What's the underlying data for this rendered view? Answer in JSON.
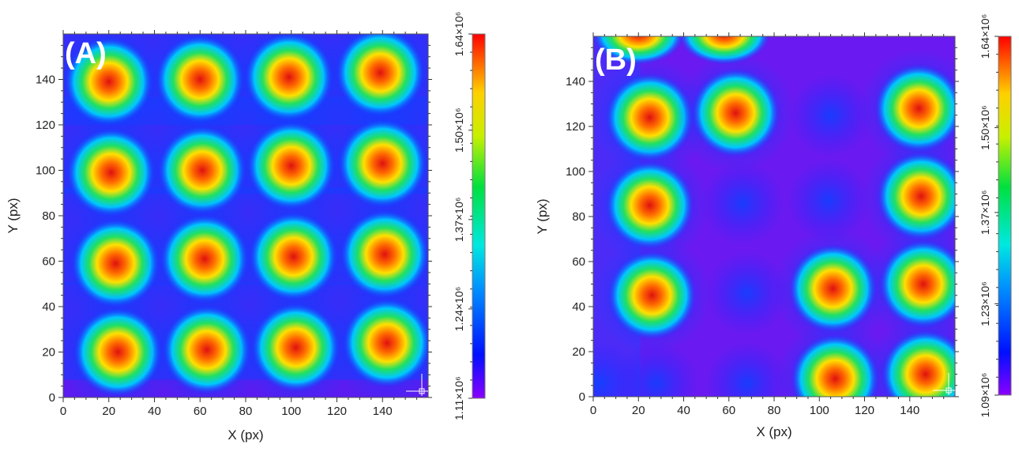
{
  "chart_data": [
    {
      "type": "heatmap",
      "panel_label": "(A)",
      "xlabel": "X (px)",
      "ylabel": "Y (px)",
      "xlim": [
        0,
        160
      ],
      "ylim": [
        0,
        160
      ],
      "x_ticks": [
        "0",
        "20",
        "40",
        "60",
        "80",
        "100",
        "120",
        "140"
      ],
      "y_ticks": [
        "0",
        "20",
        "40",
        "60",
        "80",
        "100",
        "120",
        "140"
      ],
      "colorbar": {
        "ticks": [
          {
            "value": 1.11,
            "label": "1.11×10⁶"
          },
          {
            "value": 1.24,
            "label": "1.24×10⁶"
          },
          {
            "value": 1.37,
            "label": "1.37×10⁶"
          },
          {
            "value": 1.5,
            "label": "1.50×10⁶"
          },
          {
            "value": 1.64,
            "label": "1.64×10⁶"
          }
        ],
        "min": 1.11,
        "max": 1.64
      },
      "peaks": [
        {
          "x": 20,
          "y": 139
        },
        {
          "x": 60,
          "y": 140
        },
        {
          "x": 99,
          "y": 141
        },
        {
          "x": 139,
          "y": 143
        },
        {
          "x": 21,
          "y": 99
        },
        {
          "x": 61,
          "y": 100
        },
        {
          "x": 100,
          "y": 102
        },
        {
          "x": 140,
          "y": 103
        },
        {
          "x": 23,
          "y": 59
        },
        {
          "x": 62,
          "y": 61
        },
        {
          "x": 101,
          "y": 62
        },
        {
          "x": 141,
          "y": 63
        },
        {
          "x": 24,
          "y": 20
        },
        {
          "x": 63,
          "y": 21
        },
        {
          "x": 102,
          "y": 22
        },
        {
          "x": 142,
          "y": 24
        }
      ]
    },
    {
      "type": "heatmap",
      "panel_label": "(B)",
      "xlabel": "X (px)",
      "ylabel": "Y (px)",
      "xlim": [
        0,
        160
      ],
      "ylim": [
        0,
        160
      ],
      "x_ticks": [
        "0",
        "20",
        "40",
        "60",
        "80",
        "100",
        "120",
        "140"
      ],
      "y_ticks": [
        "0",
        "20",
        "40",
        "60",
        "80",
        "100",
        "120",
        "140"
      ],
      "colorbar": {
        "ticks": [
          {
            "value": 1.09,
            "label": "1.09×10⁶"
          },
          {
            "value": 1.23,
            "label": "1.23×10⁶"
          },
          {
            "value": 1.37,
            "label": "1.37×10⁶"
          },
          {
            "value": 1.5,
            "label": "1.50×10⁶"
          },
          {
            "value": 1.64,
            "label": "1.64×10⁶"
          }
        ],
        "min": 1.09,
        "max": 1.64
      },
      "peaks": [
        {
          "x": 25,
          "y": 124
        },
        {
          "x": 63,
          "y": 126
        },
        {
          "x": 144,
          "y": 128
        },
        {
          "x": 25,
          "y": 85
        },
        {
          "x": 145,
          "y": 89
        },
        {
          "x": 26,
          "y": 45
        },
        {
          "x": 106,
          "y": 48
        },
        {
          "x": 146,
          "y": 50
        },
        {
          "x": 107,
          "y": 8
        },
        {
          "x": 147,
          "y": 10
        }
      ]
    }
  ]
}
